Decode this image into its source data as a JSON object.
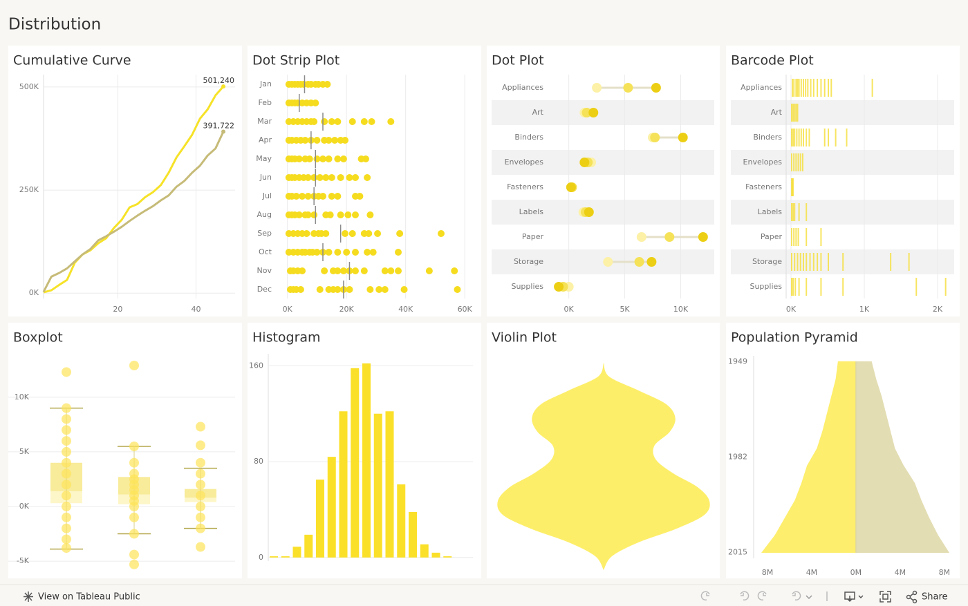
{
  "header": {
    "title": "Distribution"
  },
  "chart_data": [
    {
      "type": "line",
      "title": "Cumulative Curve",
      "x": [
        1,
        3,
        5,
        7,
        9,
        11,
        13,
        15,
        17,
        19,
        21,
        23,
        25,
        27,
        29,
        31,
        33,
        35,
        37,
        39,
        41,
        43,
        45,
        47
      ],
      "series": [
        {
          "color": "#f6e228",
          "end_label": "501,240",
          "values": [
            2000,
            7000,
            20000,
            32000,
            74000,
            94000,
            104000,
            121000,
            133000,
            158000,
            178000,
            208000,
            216000,
            233000,
            245000,
            262000,
            292000,
            329000,
            356000,
            384000,
            423000,
            446000,
            480000,
            501240
          ]
        },
        {
          "color": "#c6bb78",
          "end_label": "391,722",
          "values": [
            3000,
            40000,
            49000,
            60000,
            77000,
            94000,
            107000,
            128000,
            138000,
            149000,
            161000,
            175000,
            188000,
            200000,
            211000,
            225000,
            237000,
            258000,
            272000,
            292000,
            309000,
            334000,
            351000,
            391722
          ]
        }
      ],
      "xlim": [
        1,
        50
      ],
      "xticks": [
        20,
        40
      ],
      "ylim": [
        -13000,
        530000
      ],
      "yticks": [
        {
          "value": 0,
          "label": "0K"
        },
        {
          "value": 250000,
          "label": "250K"
        },
        {
          "value": 500000,
          "label": "500K"
        }
      ],
      "grid": true
    },
    {
      "type": "strip",
      "title": "Dot Strip Plot",
      "color": "#f5dc1f",
      "median_color": "#8a8a8a",
      "categories": [
        "Jan",
        "Feb",
        "Mar",
        "Apr",
        "May",
        "Jun",
        "Jul",
        "Aug",
        "Sep",
        "Oct",
        "Nov",
        "Dec"
      ],
      "values": [
        [
          500,
          1500,
          2500,
          3500,
          4500,
          5500,
          7000,
          8000,
          9500,
          10500,
          12000,
          13500
        ],
        [
          500,
          1500,
          2500,
          3500,
          5000,
          6500,
          8000,
          9500
        ],
        [
          500,
          2000,
          3500,
          5000,
          6500,
          8000,
          9000,
          12500,
          15000,
          17000,
          22000,
          26000,
          28500,
          35000
        ],
        [
          500,
          1500,
          3000,
          4500,
          6000,
          8000,
          10000,
          12500,
          14000,
          16000,
          18000,
          19500
        ],
        [
          500,
          1500,
          2500,
          4000,
          6000,
          7500,
          10000,
          12000,
          14000,
          17000,
          19000,
          25000,
          26500
        ],
        [
          500,
          1500,
          2500,
          4000,
          5500,
          7000,
          9000,
          11000,
          13000,
          15000,
          18000,
          21000,
          23000,
          27000
        ],
        [
          500,
          1500,
          3000,
          5000,
          7000,
          9000,
          10500,
          12000,
          15000,
          17000,
          23000,
          24500
        ],
        [
          500,
          1500,
          2500,
          4000,
          6000,
          7000,
          9000,
          13000,
          14500,
          18000,
          20500,
          23000,
          28000
        ],
        [
          500,
          2000,
          3500,
          5000,
          6500,
          9000,
          10500,
          11500,
          13000,
          19500,
          22000,
          26000,
          27500,
          30500,
          38000,
          52000
        ],
        [
          500,
          2000,
          3500,
          5000,
          6000,
          7500,
          8500,
          10000,
          12000,
          14000,
          17000,
          20000,
          23000,
          27000,
          29000,
          37500
        ],
        [
          1000,
          2000,
          3500,
          5000,
          12500,
          15500,
          17000,
          19000,
          21000,
          23000,
          26000,
          33000,
          35000,
          37500,
          48000,
          56500
        ],
        [
          1000,
          2000,
          3000,
          4500,
          11000,
          14000,
          15500,
          17000,
          19000,
          21000,
          28000,
          31000,
          33000,
          39500,
          57500
        ]
      ],
      "medians": [
        5800,
        4000,
        12000,
        8000,
        9500,
        9500,
        9000,
        9500,
        18000,
        12000,
        21000,
        19000
      ],
      "xlim": [
        -2500,
        63000
      ],
      "xticks": [
        {
          "value": 0,
          "label": "0K"
        },
        {
          "value": 20000,
          "label": "20K"
        },
        {
          "value": 40000,
          "label": "40K"
        },
        {
          "value": 60000,
          "label": "60K"
        }
      ],
      "grid": true
    },
    {
      "type": "dot",
      "title": "Dot Plot",
      "colors": [
        "#fcf1a6",
        "#f5e258",
        "#eccf14"
      ],
      "categories": [
        "Appliances",
        "Art",
        "Binders",
        "Envelopes",
        "Fasteners",
        "Labels",
        "Paper",
        "Storage",
        "Supplies"
      ],
      "values": [
        [
          2500,
          5300,
          7800
        ],
        [
          1400,
          1600,
          2200
        ],
        [
          7500,
          7700,
          10200
        ],
        [
          2000,
          1700,
          1400
        ],
        [
          200,
          300,
          200
        ],
        [
          1300,
          1500,
          1800
        ],
        [
          6500,
          9000,
          12000
        ],
        [
          3500,
          6300,
          7400
        ],
        [
          0,
          -500,
          -900
        ]
      ],
      "xlim": [
        -6900,
        13000
      ],
      "xticks": [
        {
          "value": 0,
          "label": "0K"
        },
        {
          "value": 5000,
          "label": "5K"
        },
        {
          "value": 10000,
          "label": "10K"
        }
      ],
      "grid": true
    },
    {
      "type": "barcode",
      "title": "Barcode Plot",
      "color": "#f5de38",
      "categories": [
        "Appliances",
        "Art",
        "Binders",
        "Envelopes",
        "Fasteners",
        "Labels",
        "Paper",
        "Storage",
        "Supplies"
      ],
      "values": [
        [
          10,
          30,
          60,
          80,
          100,
          130,
          160,
          190,
          220,
          260,
          300,
          350,
          400,
          450,
          500,
          540,
          1100
        ],
        [
          0,
          20,
          40,
          60,
          80
        ],
        [
          0,
          20,
          40,
          70,
          100,
          130,
          160,
          200,
          240,
          450,
          500,
          600,
          750
        ],
        [
          0,
          30,
          60,
          90,
          120,
          150
        ],
        [
          0,
          10,
          20
        ],
        [
          0,
          20,
          40,
          100,
          200
        ],
        [
          0,
          30,
          60,
          90,
          200,
          400
        ],
        [
          0,
          40,
          80,
          120,
          160,
          200,
          250,
          300,
          350,
          400,
          500,
          700,
          1350,
          1600
        ],
        [
          0,
          20,
          50,
          100,
          200,
          400,
          700,
          1700,
          2100
        ]
      ],
      "xlim": [
        -66,
        2226
      ],
      "xticks": [
        {
          "value": 0,
          "label": "0K"
        },
        {
          "value": 1000,
          "label": "1K"
        },
        {
          "value": 2000,
          "label": "2K"
        }
      ],
      "grid": true
    },
    {
      "type": "box",
      "title": "Boxplot",
      "color": "#fde45a",
      "box_colors": [
        "#fdf6c8",
        "#f8eb9a"
      ],
      "whisker_color": "#b3a64a",
      "groups": [
        {
          "values": [
            12300,
            9000,
            8000,
            7000,
            6000,
            5000,
            4000,
            3000,
            2000,
            1000,
            0,
            -1000,
            -2000,
            -3000,
            -3800
          ],
          "whisker_low": -3900,
          "q1": 300,
          "median": 1400,
          "q3": 4000,
          "whisker_high": 9000
        },
        {
          "values": [
            12900,
            5500,
            4000,
            3000,
            2500,
            2000,
            1500,
            1000,
            500,
            0,
            -1000,
            -2500,
            -4400,
            -5300
          ],
          "whisker_low": -2500,
          "q1": 200,
          "median": 1100,
          "q3": 2700,
          "whisker_high": 5500
        },
        {
          "values": [
            7300,
            5600,
            4000,
            3000,
            2000,
            1000,
            0,
            -1000,
            -2000,
            -3700
          ],
          "whisker_low": -2000,
          "q1": 400,
          "median": 800,
          "q3": 1600,
          "whisker_high": 3500
        }
      ],
      "ylim": [
        -6450,
        14100
      ],
      "yticks": [
        {
          "value": -5000,
          "label": "-5K"
        },
        {
          "value": 0,
          "label": "0K"
        },
        {
          "value": 5000,
          "label": "5K"
        },
        {
          "value": 10000,
          "label": "10K"
        }
      ],
      "grid": true
    },
    {
      "type": "histogram",
      "title": "Histogram",
      "color": "#fbe02a",
      "values": [
        1,
        1,
        9,
        19,
        65,
        84,
        122,
        158,
        162,
        120,
        122,
        61,
        38,
        11,
        4,
        1
      ],
      "ylim": [
        -3,
        170
      ],
      "yticks": [
        0,
        80,
        160
      ],
      "grid": true
    },
    {
      "type": "violin",
      "title": "Violin Plot",
      "color": "#fdee6a",
      "density": [
        0,
        8,
        50,
        90,
        103,
        95,
        73,
        75,
        100,
        135,
        152,
        145,
        105,
        50,
        12,
        0
      ]
    },
    {
      "type": "pyramid",
      "title": "Population Pyramid",
      "years": [
        1949,
        1955,
        1961,
        1967,
        1973,
        1979,
        1985,
        1991,
        1997,
        2003,
        2009,
        2015
      ],
      "series": [
        {
          "color": "#fdee6d",
          "values": [
            1600000,
            1800000,
            2200000,
            2600000,
            3000000,
            3500000,
            4400000,
            4900000,
            5500000,
            6400000,
            7300000,
            8500000
          ]
        },
        {
          "color": "#e3ddb3",
          "values": [
            1400000,
            1800000,
            2300000,
            2700000,
            3100000,
            3500000,
            4300000,
            5300000,
            5900000,
            6600000,
            7400000,
            8400000
          ]
        }
      ],
      "xlim": [
        -9250000,
        9200000
      ],
      "xticks": [
        {
          "value": -8000000,
          "label": "8M"
        },
        {
          "value": -4000000,
          "label": "4M"
        },
        {
          "value": 0,
          "label": "0M"
        },
        {
          "value": 4000000,
          "label": "4M"
        },
        {
          "value": 8000000,
          "label": "8M"
        }
      ],
      "ylim": [
        1947,
        2017
      ],
      "yticks": [
        1949,
        1982,
        2015
      ]
    }
  ],
  "footer": {
    "link": "View on Tableau Public",
    "share": "Share"
  }
}
